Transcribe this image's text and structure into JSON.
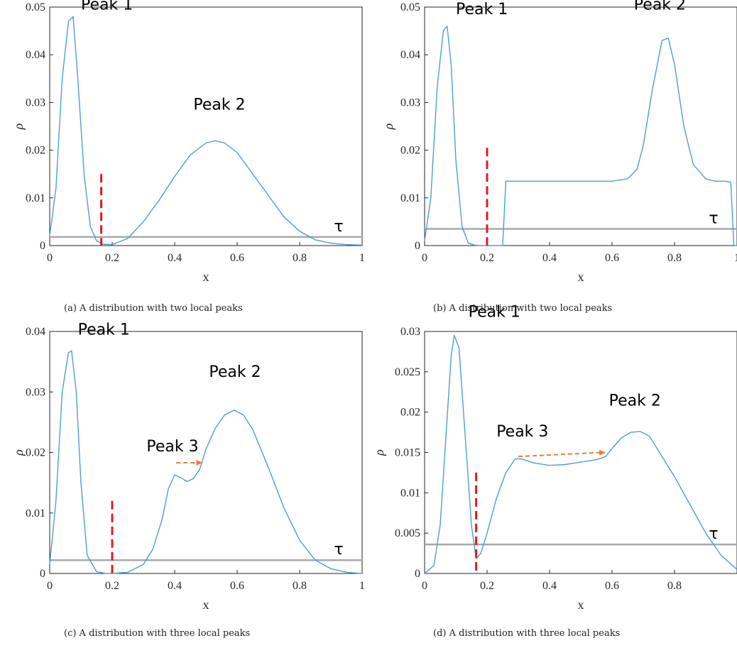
{
  "captions": {
    "a": "(a) A distribution with two local peaks",
    "b": "(b) A distribution with two local peaks",
    "c": "(c) A distribution with three local peaks",
    "d": "(d) A distribution with three local peaks"
  },
  "colors": {
    "curve": "#4a9fd6",
    "threshold": "#a9a9a9",
    "split": "#e31a1c",
    "arrow": "#ed7d31",
    "axis": "#262626"
  },
  "chart_data": [
    {
      "id": "a",
      "type": "line",
      "xlabel": "x",
      "ylabel": "ρ",
      "xlim": [
        0,
        1
      ],
      "ylim": [
        0,
        0.05
      ],
      "xticks": [
        0,
        0.2,
        0.4,
        0.6,
        0.8,
        1
      ],
      "xticklabels": [
        "0",
        "0.2",
        "0.4",
        "0.6",
        "0.8",
        "1"
      ],
      "yticks": [
        0,
        0.01,
        0.02,
        0.03,
        0.04,
        0.05
      ],
      "yticklabels": [
        "0",
        "0.01",
        "0.02",
        "0.03",
        "0.04",
        "0.05"
      ],
      "series": [
        {
          "x": [
            0,
            0.02,
            0.04,
            0.06,
            0.075,
            0.09,
            0.11,
            0.13,
            0.15,
            0.17,
            0.2,
            0.25,
            0.3,
            0.35,
            0.4,
            0.45,
            0.5,
            0.53,
            0.56,
            0.6,
            0.65,
            0.7,
            0.75,
            0.8,
            0.85,
            0.9,
            0.95,
            1
          ],
          "y": [
            0.002,
            0.012,
            0.035,
            0.047,
            0.048,
            0.035,
            0.015,
            0.004,
            0.001,
            0.0003,
            0.0002,
            0.0015,
            0.005,
            0.0095,
            0.0145,
            0.019,
            0.0215,
            0.022,
            0.0215,
            0.0195,
            0.015,
            0.0105,
            0.006,
            0.003,
            0.0012,
            0.0005,
            0.0002,
            0.0001
          ]
        }
      ],
      "threshold": {
        "y": 0.0018,
        "label": "τ"
      },
      "split": {
        "x": 0.165,
        "y_top": 0.015
      },
      "annotations": [
        {
          "text": "Peak 1",
          "x": 0.1,
          "y": 0.0495
        },
        {
          "text": "Peak 2",
          "x": 0.46,
          "y": 0.0285
        }
      ],
      "arrows": []
    },
    {
      "id": "b",
      "type": "line",
      "xlabel": "x",
      "ylabel": "ρ",
      "xlim": [
        0,
        1
      ],
      "ylim": [
        0,
        0.05
      ],
      "xticks": [
        0,
        0.2,
        0.4,
        0.6,
        0.8,
        1
      ],
      "xticklabels": [
        "0",
        "0.2",
        "0.4",
        "0.6",
        "0.8",
        "1"
      ],
      "yticks": [
        0,
        0.01,
        0.02,
        0.03,
        0.04,
        0.05
      ],
      "yticklabels": [
        "0",
        "0.01",
        "0.02",
        "0.03",
        "0.04",
        "0.05"
      ],
      "series": [
        {
          "x": [
            0,
            0.02,
            0.04,
            0.06,
            0.072,
            0.085,
            0.1,
            0.12,
            0.14,
            0.16,
            0.18,
            0.2,
            0.22,
            0.25,
            0.26,
            0.4,
            0.6,
            0.65,
            0.68,
            0.7,
            0.73,
            0.76,
            0.78,
            0.8,
            0.83,
            0.86,
            0.9,
            0.93,
            0.96,
            0.98,
            0.99,
            1
          ],
          "y": [
            0.001,
            0.01,
            0.033,
            0.045,
            0.046,
            0.038,
            0.018,
            0.004,
            0.0005,
            0.0001,
            0,
            0,
            0,
            0,
            0.0135,
            0.0135,
            0.0135,
            0.014,
            0.016,
            0.021,
            0.033,
            0.043,
            0.0435,
            0.038,
            0.025,
            0.017,
            0.014,
            0.0135,
            0.0135,
            0.0133,
            0,
            0
          ]
        }
      ],
      "threshold": {
        "y": 0.0035,
        "label": "τ"
      },
      "split": {
        "x": 0.2,
        "y_top": 0.0205
      },
      "annotations": [
        {
          "text": "Peak 1",
          "x": 0.1,
          "y": 0.0485
        },
        {
          "text": "Peak 2",
          "x": 0.67,
          "y": 0.0495
        }
      ],
      "arrows": []
    },
    {
      "id": "c",
      "type": "line",
      "xlabel": "x",
      "ylabel": "ρ",
      "xlim": [
        0,
        1
      ],
      "ylim": [
        0,
        0.04
      ],
      "xticks": [
        0,
        0.2,
        0.4,
        0.6,
        0.8,
        1
      ],
      "xticklabels": [
        "0",
        "0.2",
        "0.4",
        "0.6",
        "0.8",
        "1"
      ],
      "yticks": [
        0,
        0.01,
        0.02,
        0.03,
        0.04
      ],
      "yticklabels": [
        "0",
        "0.01",
        "0.02",
        "0.03",
        "0.04"
      ],
      "series": [
        {
          "x": [
            0,
            0.02,
            0.04,
            0.06,
            0.07,
            0.085,
            0.1,
            0.12,
            0.15,
            0.18,
            0.2,
            0.25,
            0.3,
            0.33,
            0.36,
            0.38,
            0.4,
            0.42,
            0.44,
            0.46,
            0.48,
            0.5,
            0.53,
            0.56,
            0.59,
            0.62,
            0.65,
            0.7,
            0.75,
            0.8,
            0.85,
            0.9,
            0.95,
            1
          ],
          "y": [
            0.0015,
            0.012,
            0.03,
            0.0365,
            0.0368,
            0.03,
            0.015,
            0.003,
            0.0003,
            0,
            0,
            0.0002,
            0.0015,
            0.004,
            0.009,
            0.014,
            0.0163,
            0.0158,
            0.0152,
            0.0157,
            0.0172,
            0.0205,
            0.024,
            0.0262,
            0.027,
            0.0262,
            0.0238,
            0.0175,
            0.0108,
            0.0055,
            0.0022,
            0.0008,
            0.0002,
            0
          ]
        }
      ],
      "threshold": {
        "y": 0.0022,
        "label": "τ"
      },
      "split": {
        "x": 0.2,
        "y_top": 0.012
      },
      "annotations": [
        {
          "text": "Peak 1",
          "x": 0.09,
          "y": 0.0395
        },
        {
          "text": "Peak 2",
          "x": 0.51,
          "y": 0.0325
        },
        {
          "text": "Peak 3",
          "x": 0.31,
          "y": 0.0202
        }
      ],
      "arrows": [
        {
          "x1": 0.405,
          "y1": 0.0183,
          "x2": 0.49,
          "y2": 0.0183
        }
      ]
    },
    {
      "id": "d",
      "type": "line",
      "xlabel": "x",
      "ylabel": "ρ",
      "xlim": [
        0,
        1
      ],
      "ylim": [
        0,
        0.03
      ],
      "xticks": [
        0,
        0.2,
        0.4,
        0.6,
        0.8
      ],
      "xticklabels": [
        "0",
        "0.2",
        "0.4",
        "0.6",
        "0.8"
      ],
      "yticks": [
        0,
        0.005,
        0.01,
        0.015,
        0.02,
        0.025,
        0.03
      ],
      "yticklabels": [
        "0",
        "0.005",
        "0.01",
        "0.015",
        "0.02",
        "0.025",
        "0.03"
      ],
      "series": [
        {
          "x": [
            0,
            0.03,
            0.05,
            0.07,
            0.085,
            0.095,
            0.11,
            0.13,
            0.15,
            0.165,
            0.18,
            0.2,
            0.23,
            0.26,
            0.29,
            0.31,
            0.35,
            0.4,
            0.45,
            0.5,
            0.55,
            0.58,
            0.6,
            0.63,
            0.66,
            0.69,
            0.72,
            0.76,
            0.8,
            0.85,
            0.9,
            0.95,
            1
          ],
          "y": [
            0,
            0.001,
            0.006,
            0.018,
            0.027,
            0.0295,
            0.028,
            0.017,
            0.006,
            0.0018,
            0.0025,
            0.005,
            0.0093,
            0.0125,
            0.0142,
            0.0142,
            0.0137,
            0.0134,
            0.0135,
            0.0138,
            0.0141,
            0.0145,
            0.0155,
            0.0168,
            0.0175,
            0.0176,
            0.017,
            0.0145,
            0.012,
            0.0085,
            0.005,
            0.0022,
            0.0005
          ]
        }
      ],
      "threshold": {
        "y": 0.0036,
        "label": "τ"
      },
      "split": {
        "x": 0.165,
        "y_top": 0.0125
      },
      "annotations": [
        {
          "text": "Peak 1",
          "x": 0.14,
          "y": 0.0318
        },
        {
          "text": "Peak 2",
          "x": 0.59,
          "y": 0.0208
        },
        {
          "text": "Peak 3",
          "x": 0.23,
          "y": 0.017
        }
      ],
      "arrows": [
        {
          "x1": 0.3,
          "y1": 0.0145,
          "x2": 0.58,
          "y2": 0.015
        }
      ]
    }
  ]
}
